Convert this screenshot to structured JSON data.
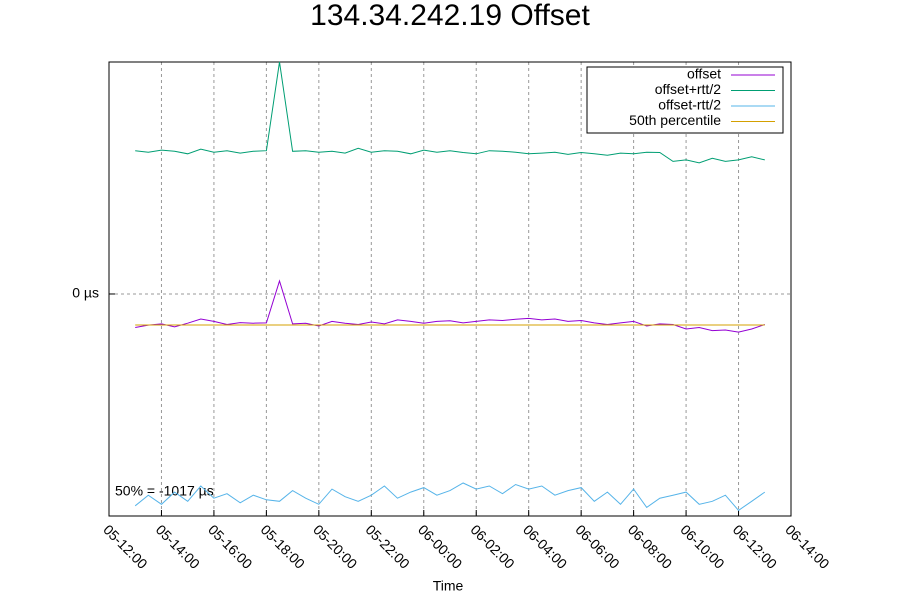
{
  "chart_data": {
    "type": "line",
    "title": "134.34.242.19 Offset",
    "xlabel": "Time",
    "annotation": "50% = -1017 µs",
    "legend": "top-right",
    "grid": true,
    "xlim": [
      "05-12:00",
      "06-14:00"
    ],
    "xticks": [
      "05-12:00",
      "05-14:00",
      "05-16:00",
      "05-18:00",
      "05-20:00",
      "05-22:00",
      "06-00:00",
      "06-02:00",
      "06-04:00",
      "06-06:00",
      "06-08:00",
      "06-10:00",
      "06-12:00",
      "06-14:00"
    ],
    "ylim": [
      -7283,
      7610
    ],
    "yticks": [
      {
        "value": 0,
        "label": "0 µs"
      }
    ],
    "x": [
      "05-13:00",
      "05-13:30",
      "05-14:00",
      "05-14:30",
      "05-15:00",
      "05-15:30",
      "05-16:00",
      "05-16:30",
      "05-17:00",
      "05-17:30",
      "05-18:00",
      "05-18:30",
      "05-19:00",
      "05-19:30",
      "05-20:00",
      "05-20:30",
      "05-21:00",
      "05-21:30",
      "05-22:00",
      "05-22:30",
      "05-23:00",
      "05-23:30",
      "06-00:00",
      "06-00:30",
      "06-01:00",
      "06-01:30",
      "06-02:00",
      "06-02:30",
      "06-03:00",
      "06-03:30",
      "06-04:00",
      "06-04:30",
      "06-05:00",
      "06-05:30",
      "06-06:00",
      "06-06:30",
      "06-07:00",
      "06-07:30",
      "06-08:00",
      "06-08:30",
      "06-09:00",
      "06-09:30",
      "06-10:00",
      "06-10:30",
      "06-11:00",
      "06-11:30",
      "06-12:00",
      "06-12:30",
      "06-13:00"
    ],
    "series": [
      {
        "name": "offset",
        "color": "#9400d3",
        "values": [
          -1100,
          -1020,
          -980,
          -1080,
          -960,
          -820,
          -900,
          -1000,
          -940,
          -960,
          -950,
          426,
          -980,
          -960,
          -1050,
          -900,
          -960,
          -1000,
          -920,
          -980,
          -850,
          -900,
          -960,
          -900,
          -880,
          -950,
          -900,
          -850,
          -870,
          -830,
          -800,
          -850,
          -820,
          -900,
          -870,
          -950,
          -1000,
          -950,
          -900,
          -1050,
          -980,
          -1000,
          -1150,
          -1100,
          -1200,
          -1180,
          -1250,
          -1150,
          -1000
        ]
      },
      {
        "name": "offset+rtt/2",
        "color": "#009e73",
        "values": [
          4700,
          4650,
          4720,
          4680,
          4600,
          4750,
          4650,
          4700,
          4620,
          4680,
          4700,
          7610,
          4680,
          4700,
          4650,
          4680,
          4620,
          4780,
          4650,
          4700,
          4680,
          4600,
          4720,
          4650,
          4700,
          4640,
          4600,
          4700,
          4680,
          4650,
          4600,
          4620,
          4650,
          4580,
          4640,
          4600,
          4550,
          4620,
          4600,
          4650,
          4640,
          4350,
          4400,
          4300,
          4450,
          4350,
          4400,
          4500,
          4400
        ]
      },
      {
        "name": "offset-rtt/2",
        "color": "#56b4e9",
        "values": [
          -6950,
          -6600,
          -6900,
          -6500,
          -6800,
          -6300,
          -6700,
          -6550,
          -6850,
          -6600,
          -6750,
          -6800,
          -6450,
          -6700,
          -6900,
          -6400,
          -6650,
          -6800,
          -6600,
          -6300,
          -6700,
          -6500,
          -6350,
          -6600,
          -6450,
          -6200,
          -6400,
          -6300,
          -6550,
          -6250,
          -6400,
          -6300,
          -6600,
          -6450,
          -6350,
          -6800,
          -6500,
          -6900,
          -6400,
          -7000,
          -6700,
          -6600,
          -6500,
          -6900,
          -6800,
          -6600,
          -7100,
          -6800,
          -6500
        ]
      },
      {
        "name": "50th percentile",
        "color": "#d4a000",
        "values": [
          -1017,
          -1017,
          -1017,
          -1017,
          -1017,
          -1017,
          -1017,
          -1017,
          -1017,
          -1017,
          -1017,
          -1017,
          -1017,
          -1017,
          -1017,
          -1017,
          -1017,
          -1017,
          -1017,
          -1017,
          -1017,
          -1017,
          -1017,
          -1017,
          -1017,
          -1017,
          -1017,
          -1017,
          -1017,
          -1017,
          -1017,
          -1017,
          -1017,
          -1017,
          -1017,
          -1017,
          -1017,
          -1017,
          -1017,
          -1017,
          -1017,
          -1017,
          -1017,
          -1017,
          -1017,
          -1017,
          -1017,
          -1017,
          -1017
        ]
      }
    ]
  }
}
